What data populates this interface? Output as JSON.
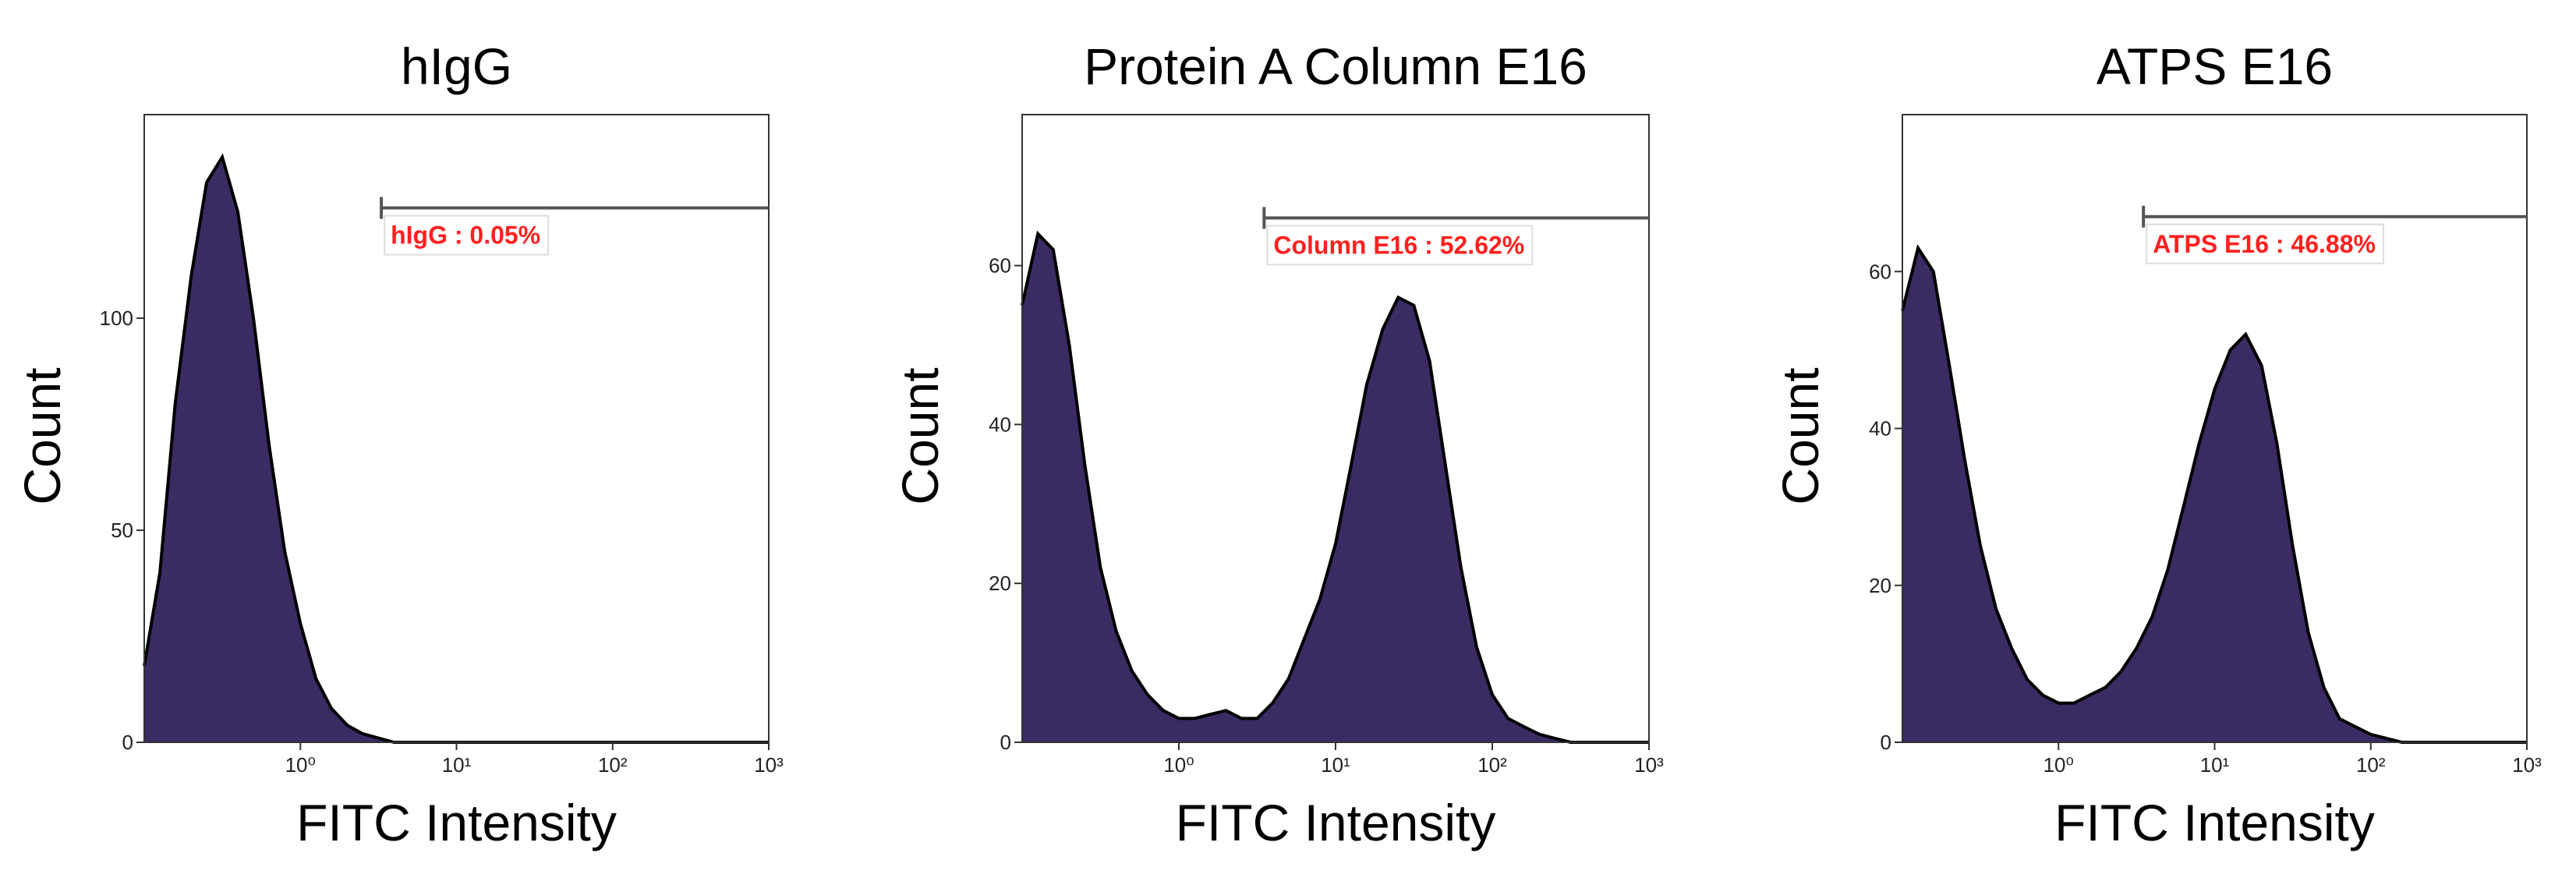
{
  "chart_data": [
    {
      "type": "area",
      "title": "hIgG",
      "xlabel": "FITC Intensity",
      "ylabel": "Count",
      "xscale": "log",
      "color": "#3b2b63",
      "line_color": "#000000",
      "xlim": [
        0.1,
        1000
      ],
      "ylim": [
        0,
        148
      ],
      "xticks": [
        {
          "value": 1,
          "label": "10⁰"
        },
        {
          "value": 10,
          "label": "10¹"
        },
        {
          "value": 100,
          "label": "10²"
        },
        {
          "value": 1000,
          "label": "10³"
        }
      ],
      "yticks": [
        0,
        50,
        100
      ],
      "x": [
        0.1,
        0.126,
        0.158,
        0.2,
        0.251,
        0.316,
        0.398,
        0.501,
        0.631,
        0.794,
        1,
        1.26,
        1.58,
        2,
        2.51,
        3.16,
        3.98,
        5.01,
        6.31,
        7.94,
        10,
        12.6,
        15.8,
        20,
        25.1,
        31.6,
        39.8,
        50.1,
        63.1,
        79.4,
        100,
        126,
        158,
        200,
        251,
        316,
        398,
        501,
        631,
        794,
        1000
      ],
      "values": [
        18,
        40,
        80,
        110,
        132,
        138,
        125,
        100,
        70,
        45,
        28,
        15,
        8,
        4,
        2,
        1,
        0,
        0,
        0,
        0,
        0,
        0,
        0,
        0,
        0,
        0,
        0,
        0,
        0,
        0,
        0,
        0,
        0,
        0,
        0,
        0,
        0,
        0,
        0,
        0,
        0
      ],
      "gate": {
        "x": [
          3.3,
          1000
        ],
        "y": 126,
        "label": "hIgG : 0.05%",
        "color": "#ff2020"
      }
    },
    {
      "type": "area",
      "title": "Protein A Column E16",
      "xlabel": "FITC Intensity",
      "ylabel": "Count",
      "xscale": "log",
      "color": "#3b2b63",
      "line_color": "#000000",
      "xlim": [
        0.1,
        1000
      ],
      "ylim": [
        0,
        79
      ],
      "xticks": [
        {
          "value": 1,
          "label": "10⁰"
        },
        {
          "value": 10,
          "label": "10¹"
        },
        {
          "value": 100,
          "label": "10²"
        },
        {
          "value": 1000,
          "label": "10³"
        }
      ],
      "yticks": [
        0,
        20,
        40,
        60
      ],
      "x": [
        0.1,
        0.126,
        0.158,
        0.2,
        0.251,
        0.316,
        0.398,
        0.501,
        0.631,
        0.794,
        1,
        1.26,
        1.58,
        2,
        2.51,
        3.16,
        3.98,
        5.01,
        6.31,
        7.94,
        10,
        12.6,
        15.8,
        20,
        25.1,
        31.6,
        39.8,
        50.1,
        63.1,
        79.4,
        100,
        126,
        158,
        200,
        251,
        316,
        398,
        501,
        631,
        794,
        1000
      ],
      "values": [
        55,
        64,
        62,
        50,
        35,
        22,
        14,
        9,
        6,
        4,
        3,
        3,
        3.5,
        4,
        3,
        3,
        5,
        8,
        13,
        18,
        25,
        35,
        45,
        52,
        56,
        55,
        48,
        35,
        22,
        12,
        6,
        3,
        2,
        1,
        0.5,
        0,
        0,
        0,
        0,
        0,
        0
      ],
      "gate": {
        "x": [
          3.5,
          1000
        ],
        "y": 66,
        "label": "Column E16 : 52.62%",
        "color": "#ff2020"
      }
    },
    {
      "type": "area",
      "title": "ATPS E16",
      "xlabel": "FITC Intensity",
      "ylabel": "Count",
      "xscale": "log",
      "color": "#3b2b63",
      "line_color": "#000000",
      "xlim": [
        0.1,
        1000
      ],
      "ylim": [
        0,
        80
      ],
      "xticks": [
        {
          "value": 1,
          "label": "10⁰"
        },
        {
          "value": 10,
          "label": "10¹"
        },
        {
          "value": 100,
          "label": "10²"
        },
        {
          "value": 1000,
          "label": "10³"
        }
      ],
      "yticks": [
        0,
        20,
        40,
        60
      ],
      "x": [
        0.1,
        0.126,
        0.158,
        0.2,
        0.251,
        0.316,
        0.398,
        0.501,
        0.631,
        0.794,
        1,
        1.26,
        1.58,
        2,
        2.51,
        3.16,
        3.98,
        5.01,
        6.31,
        7.94,
        10,
        12.6,
        15.8,
        20,
        25.1,
        31.6,
        39.8,
        50.1,
        63.1,
        79.4,
        100,
        126,
        158,
        200,
        251,
        316,
        398,
        501,
        631,
        794,
        1000
      ],
      "values": [
        55,
        63,
        60,
        48,
        36,
        25,
        17,
        12,
        8,
        6,
        5,
        5,
        6,
        7,
        9,
        12,
        16,
        22,
        30,
        38,
        45,
        50,
        52,
        48,
        38,
        25,
        14,
        7,
        3,
        2,
        1,
        0.5,
        0,
        0,
        0,
        0,
        0,
        0,
        0,
        0,
        0
      ],
      "gate": {
        "x": [
          3.5,
          1000
        ],
        "y": 67,
        "label": "ATPS E16 : 46.88%",
        "color": "#ff2020"
      }
    }
  ]
}
